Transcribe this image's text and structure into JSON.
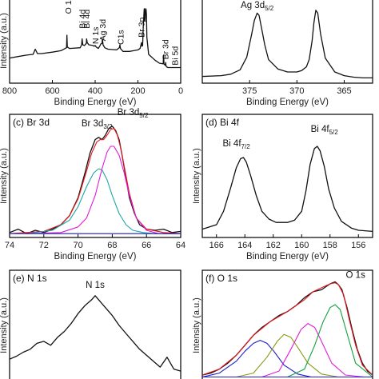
{
  "figure": {
    "colors": {
      "axis": "#000000",
      "black": "#111111",
      "red": "#e8151b",
      "cyan": "#1aa7a7",
      "magenta": "#e31ad8",
      "blue": "#1a1ac8",
      "olive": "#8a9a12",
      "green": "#11a03a"
    }
  },
  "chart_data": [
    {
      "id": "a",
      "type": "line",
      "panel_label": "",
      "xlabel": "Binding Energy (eV)",
      "ylabel": "Intensity (a.u.)",
      "xlim": [
        800,
        0
      ],
      "reversed_x": true,
      "xticks": [
        800,
        600,
        400,
        200,
        0
      ],
      "ylim": [
        0,
        1
      ],
      "series": [
        {
          "color": "black",
          "x": [
            800,
            760,
            720,
            690,
            680,
            670,
            650,
            600,
            560,
            534,
            532,
            530,
            520,
            470,
            463,
            461,
            458,
            450,
            441,
            440,
            437,
            430,
            410,
            405,
            400,
            395,
            385,
            377,
            374,
            368,
            366,
            363,
            355,
            340,
            300,
            287,
            284,
            282,
            270,
            240,
            220,
            200,
            190,
            183,
            181,
            178,
            175,
            171,
            170,
            168,
            166,
            164,
            162,
            160,
            158,
            150,
            120,
            100,
            82,
            80,
            78,
            72,
            70,
            69,
            67,
            66,
            60,
            40,
            20,
            10,
            0
          ],
          "y": [
            0.32,
            0.34,
            0.36,
            0.37,
            0.44,
            0.38,
            0.38,
            0.4,
            0.42,
            0.46,
            0.63,
            0.47,
            0.45,
            0.46,
            0.5,
            0.58,
            0.5,
            0.49,
            0.52,
            0.58,
            0.53,
            0.5,
            0.49,
            0.48,
            0.49,
            0.47,
            0.45,
            0.49,
            0.51,
            0.52,
            0.58,
            0.5,
            0.46,
            0.44,
            0.43,
            0.46,
            0.5,
            0.45,
            0.41,
            0.41,
            0.42,
            0.43,
            0.45,
            0.53,
            0.48,
            0.49,
            0.75,
            0.98,
            0.99,
            0.82,
            0.86,
            0.99,
            0.98,
            0.9,
            0.6,
            0.37,
            0.29,
            0.25,
            0.24,
            0.36,
            0.24,
            0.22,
            0.26,
            0.22,
            0.21,
            0.2,
            0.19,
            0.19,
            0.19,
            0.19,
            0.19
          ]
        }
      ],
      "annotations": [
        {
          "text": "O 1s",
          "x": 527,
          "y": 0.92
        },
        {
          "text": "Bi 4d",
          "x": 462,
          "y": 0.72
        },
        {
          "text": "Bi 4d",
          "x": 441,
          "y": 0.72
        },
        {
          "text": "N 1s",
          "x": 400,
          "y": 0.51
        },
        {
          "text": "Ag 3d",
          "x": 366,
          "y": 0.55
        },
        {
          "text": "C1s",
          "x": 282,
          "y": 0.5
        },
        {
          "text": "Br 3p",
          "x": 185,
          "y": 0.6
        },
        {
          "text": "Br 3d",
          "x": 72,
          "y": 0.3
        },
        {
          "text": "Bi 5d",
          "x": 28,
          "y": 0.22
        }
      ]
    },
    {
      "id": "b",
      "type": "line",
      "panel_label": "",
      "xlabel": "Binding Energy (eV)",
      "ylabel": "",
      "xlim": [
        380,
        362
      ],
      "reversed_x": true,
      "xticks": [
        375,
        370,
        365
      ],
      "ylim": [
        0,
        1
      ],
      "series": [
        {
          "color": "black",
          "x": [
            380,
            378,
            377,
            376,
            375.3,
            374.8,
            374.5,
            374.2,
            374.0,
            373.7,
            373.4,
            373,
            372,
            371,
            370,
            369.5,
            369,
            368.7,
            368.4,
            368.2,
            368.0,
            367.8,
            367.5,
            367,
            366,
            365,
            364,
            363,
            362
          ],
          "y": [
            0.07,
            0.08,
            0.1,
            0.16,
            0.33,
            0.63,
            0.83,
            0.93,
            0.9,
            0.7,
            0.5,
            0.3,
            0.17,
            0.13,
            0.13,
            0.15,
            0.2,
            0.3,
            0.55,
            0.8,
            0.97,
            0.93,
            0.65,
            0.32,
            0.13,
            0.08,
            0.06,
            0.05,
            0.05
          ]
        }
      ],
      "annotations": [
        {
          "text": "Ag 3d",
          "sub": "5/2",
          "x": 374.2,
          "y": 1.0
        }
      ]
    },
    {
      "id": "c",
      "type": "line",
      "panel_label": "(c) Br 3d",
      "xlabel": "Binding Energy (eV)",
      "ylabel": "Intensity (a.u.)",
      "xlim": [
        74,
        64
      ],
      "reversed_x": true,
      "xticks": [
        74,
        72,
        70,
        68,
        66,
        64
      ],
      "ylim": [
        0,
        1
      ],
      "series": [
        {
          "color": "black",
          "x": [
            74,
            73.5,
            73,
            72.5,
            72,
            71.5,
            71,
            70.5,
            70,
            69.6,
            69.3,
            69,
            68.8,
            68.6,
            68.4,
            68.2,
            68,
            67.8,
            67.6,
            67.4,
            67.2,
            67,
            66.7,
            66.4,
            66,
            65.5,
            65,
            64.5,
            64
          ],
          "y": [
            0.03,
            0.06,
            0.02,
            0.05,
            0.03,
            0.06,
            0.1,
            0.18,
            0.34,
            0.56,
            0.74,
            0.86,
            0.88,
            0.86,
            0.9,
            0.96,
            0.98,
            0.94,
            0.86,
            0.7,
            0.52,
            0.34,
            0.2,
            0.1,
            0.06,
            0.05,
            0.06,
            0.03,
            0.04
          ]
        },
        {
          "color": "red",
          "x": [
            74,
            72,
            71,
            70.5,
            70,
            69.5,
            69.2,
            68.9,
            68.7,
            68.5,
            68.3,
            68.1,
            67.9,
            67.7,
            67.5,
            67.3,
            67,
            66.6,
            66,
            65,
            64
          ],
          "y": [
            0.02,
            0.04,
            0.1,
            0.18,
            0.33,
            0.58,
            0.74,
            0.84,
            0.86,
            0.86,
            0.9,
            0.95,
            0.96,
            0.9,
            0.78,
            0.62,
            0.38,
            0.16,
            0.06,
            0.03,
            0.02
          ]
        },
        {
          "color": "cyan",
          "x": [
            73,
            71.5,
            70.5,
            70,
            69.5,
            69.1,
            68.8,
            68.6,
            68.3,
            68,
            67.6,
            67.2,
            66.8,
            66.2,
            65.5,
            64
          ],
          "y": [
            0.02,
            0.05,
            0.14,
            0.26,
            0.44,
            0.56,
            0.6,
            0.59,
            0.5,
            0.36,
            0.2,
            0.1,
            0.05,
            0.03,
            0.02,
            0.02
          ]
        },
        {
          "color": "magenta",
          "x": [
            73,
            71,
            70,
            69.5,
            69,
            68.6,
            68.3,
            68.1,
            67.9,
            67.6,
            67.3,
            67,
            66.6,
            66,
            65.3,
            64
          ],
          "y": [
            0.02,
            0.03,
            0.08,
            0.16,
            0.36,
            0.6,
            0.75,
            0.8,
            0.8,
            0.72,
            0.56,
            0.36,
            0.16,
            0.05,
            0.02,
            0.02
          ]
        },
        {
          "color": "blue",
          "x": [
            74,
            64
          ],
          "y": [
            0.02,
            0.02
          ]
        }
      ],
      "annotations": [
        {
          "text": "Br 3d",
          "sub": "3/2",
          "x": 68.9,
          "y": 0.98
        },
        {
          "text": "Br 3d",
          "sub": "5/2",
          "x": 66.8,
          "y": 1.08
        }
      ]
    },
    {
      "id": "d",
      "type": "line",
      "panel_label": "(d) Bi 4f",
      "xlabel": "Binding Energy (eV)",
      "ylabel": "Intensity (a.u.)",
      "xlim": [
        167,
        155
      ],
      "reversed_x": true,
      "xticks": [
        166,
        164,
        162,
        160,
        158,
        156
      ],
      "ylim": [
        0,
        1
      ],
      "series": [
        {
          "color": "black",
          "x": [
            167,
            166,
            165.5,
            165,
            164.6,
            164.3,
            164.1,
            163.9,
            163.6,
            163.2,
            162.8,
            162.3,
            161.8,
            161,
            160.5,
            160,
            159.7,
            159.4,
            159.1,
            158.9,
            158.7,
            158.4,
            158.1,
            157.7,
            157.2,
            156.5,
            156,
            155
          ],
          "y": [
            0.06,
            0.1,
            0.22,
            0.43,
            0.61,
            0.69,
            0.7,
            0.66,
            0.54,
            0.36,
            0.22,
            0.15,
            0.12,
            0.12,
            0.14,
            0.22,
            0.4,
            0.64,
            0.78,
            0.8,
            0.76,
            0.62,
            0.42,
            0.25,
            0.13,
            0.07,
            0.05,
            0.04
          ]
        }
      ],
      "annotations": [
        {
          "text": "Bi 4f",
          "sub": "7/2",
          "x": 164.6,
          "y": 0.8
        },
        {
          "text": "Bi 4f",
          "sub": "5/2",
          "x": 158.4,
          "y": 0.93
        }
      ]
    },
    {
      "id": "e",
      "type": "line",
      "panel_label": "(e) N 1s",
      "xlabel": "",
      "ylabel": "Intensity (a.u.)",
      "xlim": [
        0,
        1
      ],
      "reversed_x": false,
      "xticks": [],
      "ylim": [
        0,
        1
      ],
      "series": [
        {
          "color": "black",
          "x": [
            0.0,
            0.04,
            0.08,
            0.12,
            0.16,
            0.2,
            0.24,
            0.28,
            0.32,
            0.36,
            0.4,
            0.44,
            0.48,
            0.5,
            0.52,
            0.56,
            0.6,
            0.64,
            0.68,
            0.72,
            0.76,
            0.8,
            0.84,
            0.88,
            0.92,
            0.96,
            1.0
          ],
          "y": [
            0.2,
            0.23,
            0.27,
            0.3,
            0.36,
            0.38,
            0.34,
            0.42,
            0.48,
            0.56,
            0.66,
            0.74,
            0.8,
            0.84,
            0.8,
            0.72,
            0.64,
            0.54,
            0.46,
            0.38,
            0.3,
            0.24,
            0.18,
            0.12,
            0.22,
            0.1,
            0.08
          ]
        }
      ],
      "annotations": [
        {
          "text": "N 1s",
          "x": 0.5,
          "y": 0.92
        }
      ]
    },
    {
      "id": "f",
      "type": "line",
      "panel_label": "(f) O 1s",
      "xlabel": "",
      "ylabel": "Intensity (a.u.)",
      "xlim": [
        0,
        1
      ],
      "reversed_x": false,
      "xticks": [],
      "ylim": [
        0,
        1
      ],
      "series": [
        {
          "color": "black",
          "x": [
            0.0,
            0.05,
            0.1,
            0.15,
            0.2,
            0.25,
            0.3,
            0.35,
            0.4,
            0.45,
            0.5,
            0.55,
            0.6,
            0.65,
            0.7,
            0.75,
            0.78,
            0.8,
            0.82,
            0.85,
            0.88,
            0.91,
            0.94,
            0.97,
            1.0
          ],
          "y": [
            0.04,
            0.06,
            0.1,
            0.16,
            0.24,
            0.34,
            0.44,
            0.52,
            0.58,
            0.64,
            0.68,
            0.74,
            0.82,
            0.88,
            0.9,
            0.96,
            0.98,
            0.95,
            0.9,
            0.72,
            0.5,
            0.3,
            0.16,
            0.08,
            0.04
          ]
        },
        {
          "color": "red",
          "x": [
            0.0,
            0.1,
            0.2,
            0.3,
            0.4,
            0.5,
            0.6,
            0.65,
            0.7,
            0.75,
            0.78,
            0.8,
            0.83,
            0.86,
            0.9,
            0.94,
            1.0
          ],
          "y": [
            0.04,
            0.1,
            0.24,
            0.44,
            0.58,
            0.68,
            0.8,
            0.88,
            0.92,
            0.96,
            0.97,
            0.95,
            0.85,
            0.62,
            0.34,
            0.14,
            0.04
          ]
        },
        {
          "color": "blue",
          "x": [
            0.0,
            0.1,
            0.2,
            0.25,
            0.3,
            0.34,
            0.38,
            0.42,
            0.48,
            0.56,
            0.64,
            1.0
          ],
          "y": [
            0.02,
            0.06,
            0.18,
            0.28,
            0.36,
            0.39,
            0.36,
            0.28,
            0.14,
            0.05,
            0.02,
            0.02
          ]
        },
        {
          "color": "olive",
          "x": [
            0.2,
            0.3,
            0.38,
            0.44,
            0.48,
            0.52,
            0.56,
            0.62,
            0.7,
            0.8
          ],
          "y": [
            0.02,
            0.06,
            0.22,
            0.38,
            0.45,
            0.42,
            0.32,
            0.16,
            0.05,
            0.02
          ]
        },
        {
          "color": "magenta",
          "x": [
            0.35,
            0.45,
            0.52,
            0.58,
            0.62,
            0.66,
            0.7,
            0.76,
            0.84,
            0.95
          ],
          "y": [
            0.02,
            0.08,
            0.3,
            0.5,
            0.56,
            0.52,
            0.38,
            0.16,
            0.04,
            0.02
          ]
        },
        {
          "color": "green",
          "x": [
            0.5,
            0.6,
            0.66,
            0.71,
            0.75,
            0.78,
            0.81,
            0.85,
            0.9,
            1.0
          ],
          "y": [
            0.02,
            0.1,
            0.34,
            0.58,
            0.72,
            0.75,
            0.7,
            0.46,
            0.16,
            0.02
          ]
        },
        {
          "color": "blue",
          "x": [
            0.0,
            1.0
          ],
          "y": [
            0.02,
            0.02
          ]
        }
      ],
      "annotations": [
        {
          "text": "O 1s",
          "x": 0.9,
          "y": 1.02
        }
      ]
    }
  ]
}
